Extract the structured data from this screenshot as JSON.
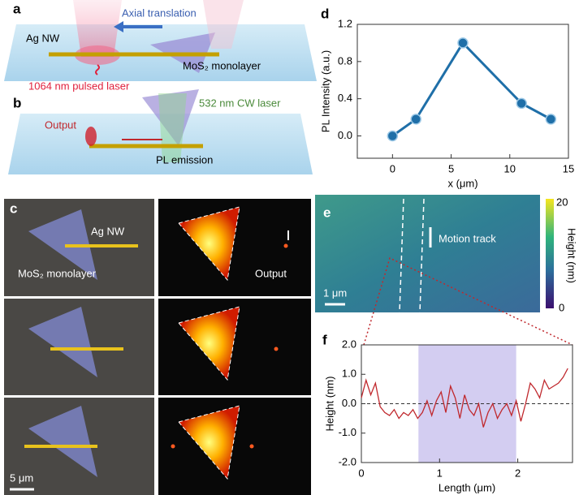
{
  "panels": {
    "a": "a",
    "b": "b",
    "c": "c",
    "d": "d",
    "e": "e",
    "f": "f"
  },
  "schematic_a": {
    "nanowire": "Ag NW",
    "motion": "Axial translation",
    "flake": "MoS₂ monolayer",
    "laser": "1064 nm pulsed laser"
  },
  "schematic_b": {
    "laser": "532 nm CW laser",
    "output": "Output",
    "emission": "PL emission"
  },
  "micrographs": {
    "nanowire": "Ag NW",
    "flake": "MoS₂ monolayer",
    "output": "Output",
    "scale_bar": "5 μm"
  },
  "afm": {
    "motion": "Motion track",
    "scale_bar": "1 μm",
    "colorbar_max": "20",
    "colorbar_min": "0",
    "colorbar_label": "Height (nm)"
  },
  "chart_data": [
    {
      "type": "line",
      "xlabel": "x (μm)",
      "ylabel": "PL Intensity (a.u.)",
      "color": "#1f6fa8",
      "markers": true,
      "x": [
        0,
        2,
        6,
        11,
        13.5
      ],
      "values": [
        0,
        0.18,
        1.0,
        0.35,
        0.18
      ],
      "xlim": [
        -3,
        15
      ],
      "ylim": [
        -0.24,
        1.2
      ],
      "xticks": [
        0,
        5,
        10,
        15
      ],
      "yticks": [
        {
          "value": 0,
          "label": "0.0"
        },
        {
          "value": 0.4,
          "label": "0.4"
        },
        {
          "value": 0.8,
          "label": "0.8"
        },
        {
          "value": 1.2,
          "label": "1.2"
        }
      ]
    },
    {
      "type": "line",
      "xlabel": "Length (μm)",
      "ylabel": "Height (nm)",
      "color": "#c0282d",
      "markers": false,
      "x": [
        0,
        0.06,
        0.12,
        0.18,
        0.24,
        0.3,
        0.36,
        0.42,
        0.48,
        0.54,
        0.6,
        0.66,
        0.72,
        0.78,
        0.84,
        0.9,
        0.96,
        1.02,
        1.08,
        1.14,
        1.2,
        1.26,
        1.32,
        1.38,
        1.44,
        1.5,
        1.56,
        1.62,
        1.68,
        1.74,
        1.8,
        1.86,
        1.92,
        1.98,
        2.04,
        2.1,
        2.16,
        2.22,
        2.28,
        2.34,
        2.4,
        2.46,
        2.52,
        2.58,
        2.64
      ],
      "values": [
        0.2,
        0.8,
        0.3,
        0.7,
        -0.1,
        -0.3,
        -0.4,
        -0.2,
        -0.5,
        -0.3,
        -0.4,
        -0.2,
        -0.5,
        -0.3,
        0.1,
        -0.4,
        0.1,
        0.4,
        -0.3,
        0.6,
        0.2,
        -0.5,
        0.3,
        -0.2,
        -0.4,
        0.0,
        -0.8,
        -0.3,
        0.0,
        -0.5,
        -0.2,
        0.0,
        -0.4,
        0.1,
        -0.6,
        0.0,
        0.7,
        0.5,
        0.2,
        0.8,
        0.5,
        0.6,
        0.7,
        0.9,
        1.2
      ],
      "highlight": [
        0.73,
        1.98
      ],
      "hline": 0,
      "xlim": [
        0,
        2.7
      ],
      "ylim": [
        -2,
        2
      ],
      "xticks": [
        0,
        1,
        2
      ],
      "yticks": [
        {
          "value": 2,
          "label": "2.0"
        },
        {
          "value": 1,
          "label": "1.0"
        },
        {
          "value": 0,
          "label": "0.0"
        },
        {
          "value": -1,
          "label": "-1.0"
        },
        {
          "value": -2,
          "label": "-2.0"
        }
      ]
    }
  ]
}
